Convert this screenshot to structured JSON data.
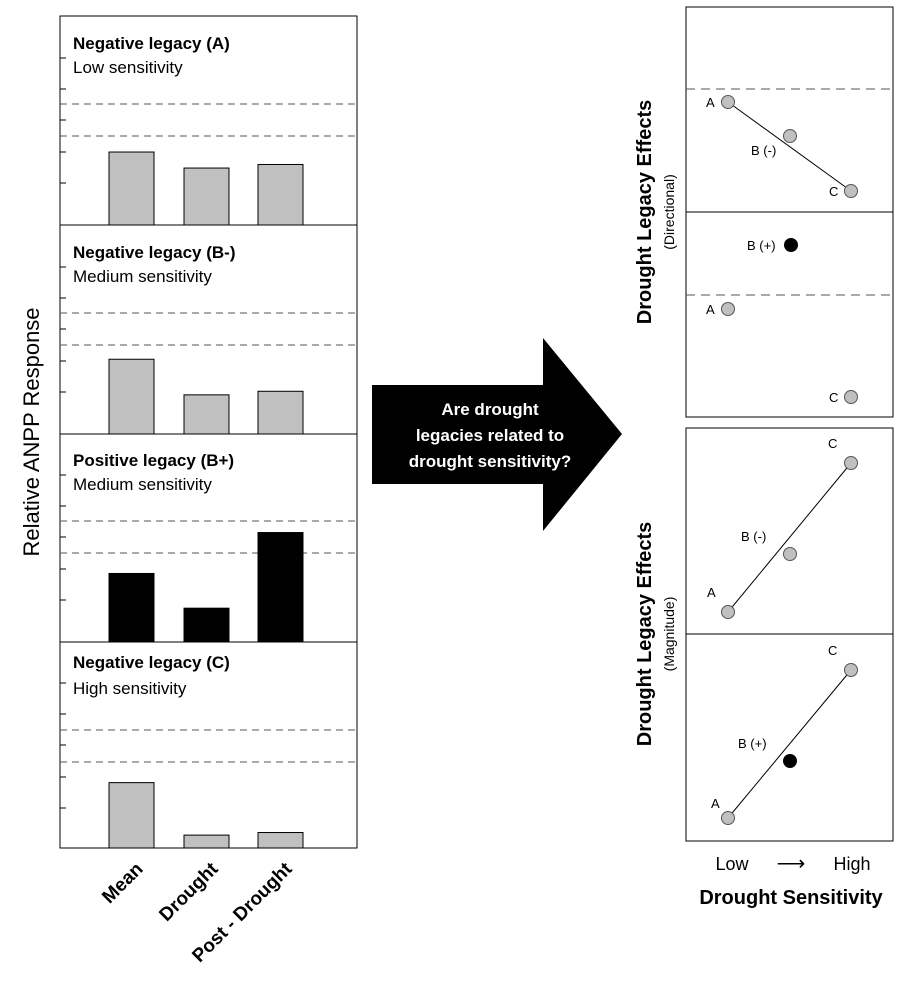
{
  "left": {
    "ylabel": "Relative ANPP Response",
    "categories": [
      "Mean",
      "Drought",
      "Post - Drought"
    ],
    "panels": [
      {
        "title": "Negative legacy (A)",
        "subtitle": "Low sensitivity",
        "values": [
          0.82,
          0.64,
          0.68
        ],
        "fill": "#c0c0c0"
      },
      {
        "title": "Negative legacy (B-)",
        "subtitle": "Medium sensitivity",
        "values": [
          0.84,
          0.44,
          0.48
        ],
        "fill": "#c0c0c0"
      },
      {
        "title": "Positive legacy (B+)",
        "subtitle": "Medium sensitivity",
        "values": [
          0.77,
          0.38,
          1.23
        ],
        "fill": "#000000"
      },
      {
        "title": "Negative legacy (C)",
        "subtitle": "High sensitivity",
        "values": [
          0.76,
          0.15,
          0.18
        ],
        "fill": "#c0c0c0"
      }
    ]
  },
  "arrow": {
    "lines": [
      "Are drought",
      "legacies related to",
      "drought sensitivity?"
    ]
  },
  "right": {
    "directional": {
      "ylabel": "Drought Legacy Effects",
      "ysub": "(Directional)",
      "points": [
        {
          "label": "A",
          "fill": "gray"
        },
        {
          "label": "B (-)",
          "fill": "gray"
        },
        {
          "label": "C",
          "fill": "gray"
        },
        {
          "label": "B (+)",
          "fill": "black"
        },
        {
          "label": "A",
          "fill": "gray"
        },
        {
          "label": "C",
          "fill": "gray"
        }
      ]
    },
    "magnitude": {
      "ylabel": "Drought Legacy Effects",
      "ysub": "(Magnitude)",
      "points": [
        {
          "label": "A",
          "fill": "gray"
        },
        {
          "label": "B (-)",
          "fill": "gray"
        },
        {
          "label": "C",
          "fill": "gray"
        },
        {
          "label": "A",
          "fill": "gray"
        },
        {
          "label": "B (+)",
          "fill": "black"
        },
        {
          "label": "C",
          "fill": "gray"
        }
      ]
    },
    "xlow": "Low",
    "xarrow": "⟶",
    "xhigh": "High",
    "xlabel": "Drought Sensitivity"
  }
}
